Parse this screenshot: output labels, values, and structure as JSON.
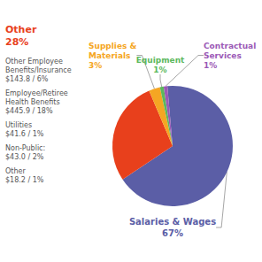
{
  "chart_data": {
    "type": "pie",
    "categories": [
      "Salaries & Wages",
      "Other",
      "Supplies &\nMaterials",
      "Equipment",
      "Contractual\nServices"
    ],
    "values": [
      67,
      28,
      3,
      1,
      1
    ],
    "value_labels": [
      "67%",
      "28%",
      "3%",
      "1%",
      "1%"
    ],
    "colors": [
      "#5b5ea6",
      "#e8401c",
      "#f5a623",
      "#5cb85c",
      "#9b59b6"
    ],
    "data_labels": true,
    "annotations": [
      "Other Employee\nBenefits/Insurance\n$143.8 / 6%",
      "Employee/Retiree\nHealth Benefits\n$445.9 / 18%",
      "Utilities\n$41.6 / 1%",
      "Non-Public:\n$43.0 / 2%",
      "Other\n$18.2 / 1%"
    ]
  }
}
